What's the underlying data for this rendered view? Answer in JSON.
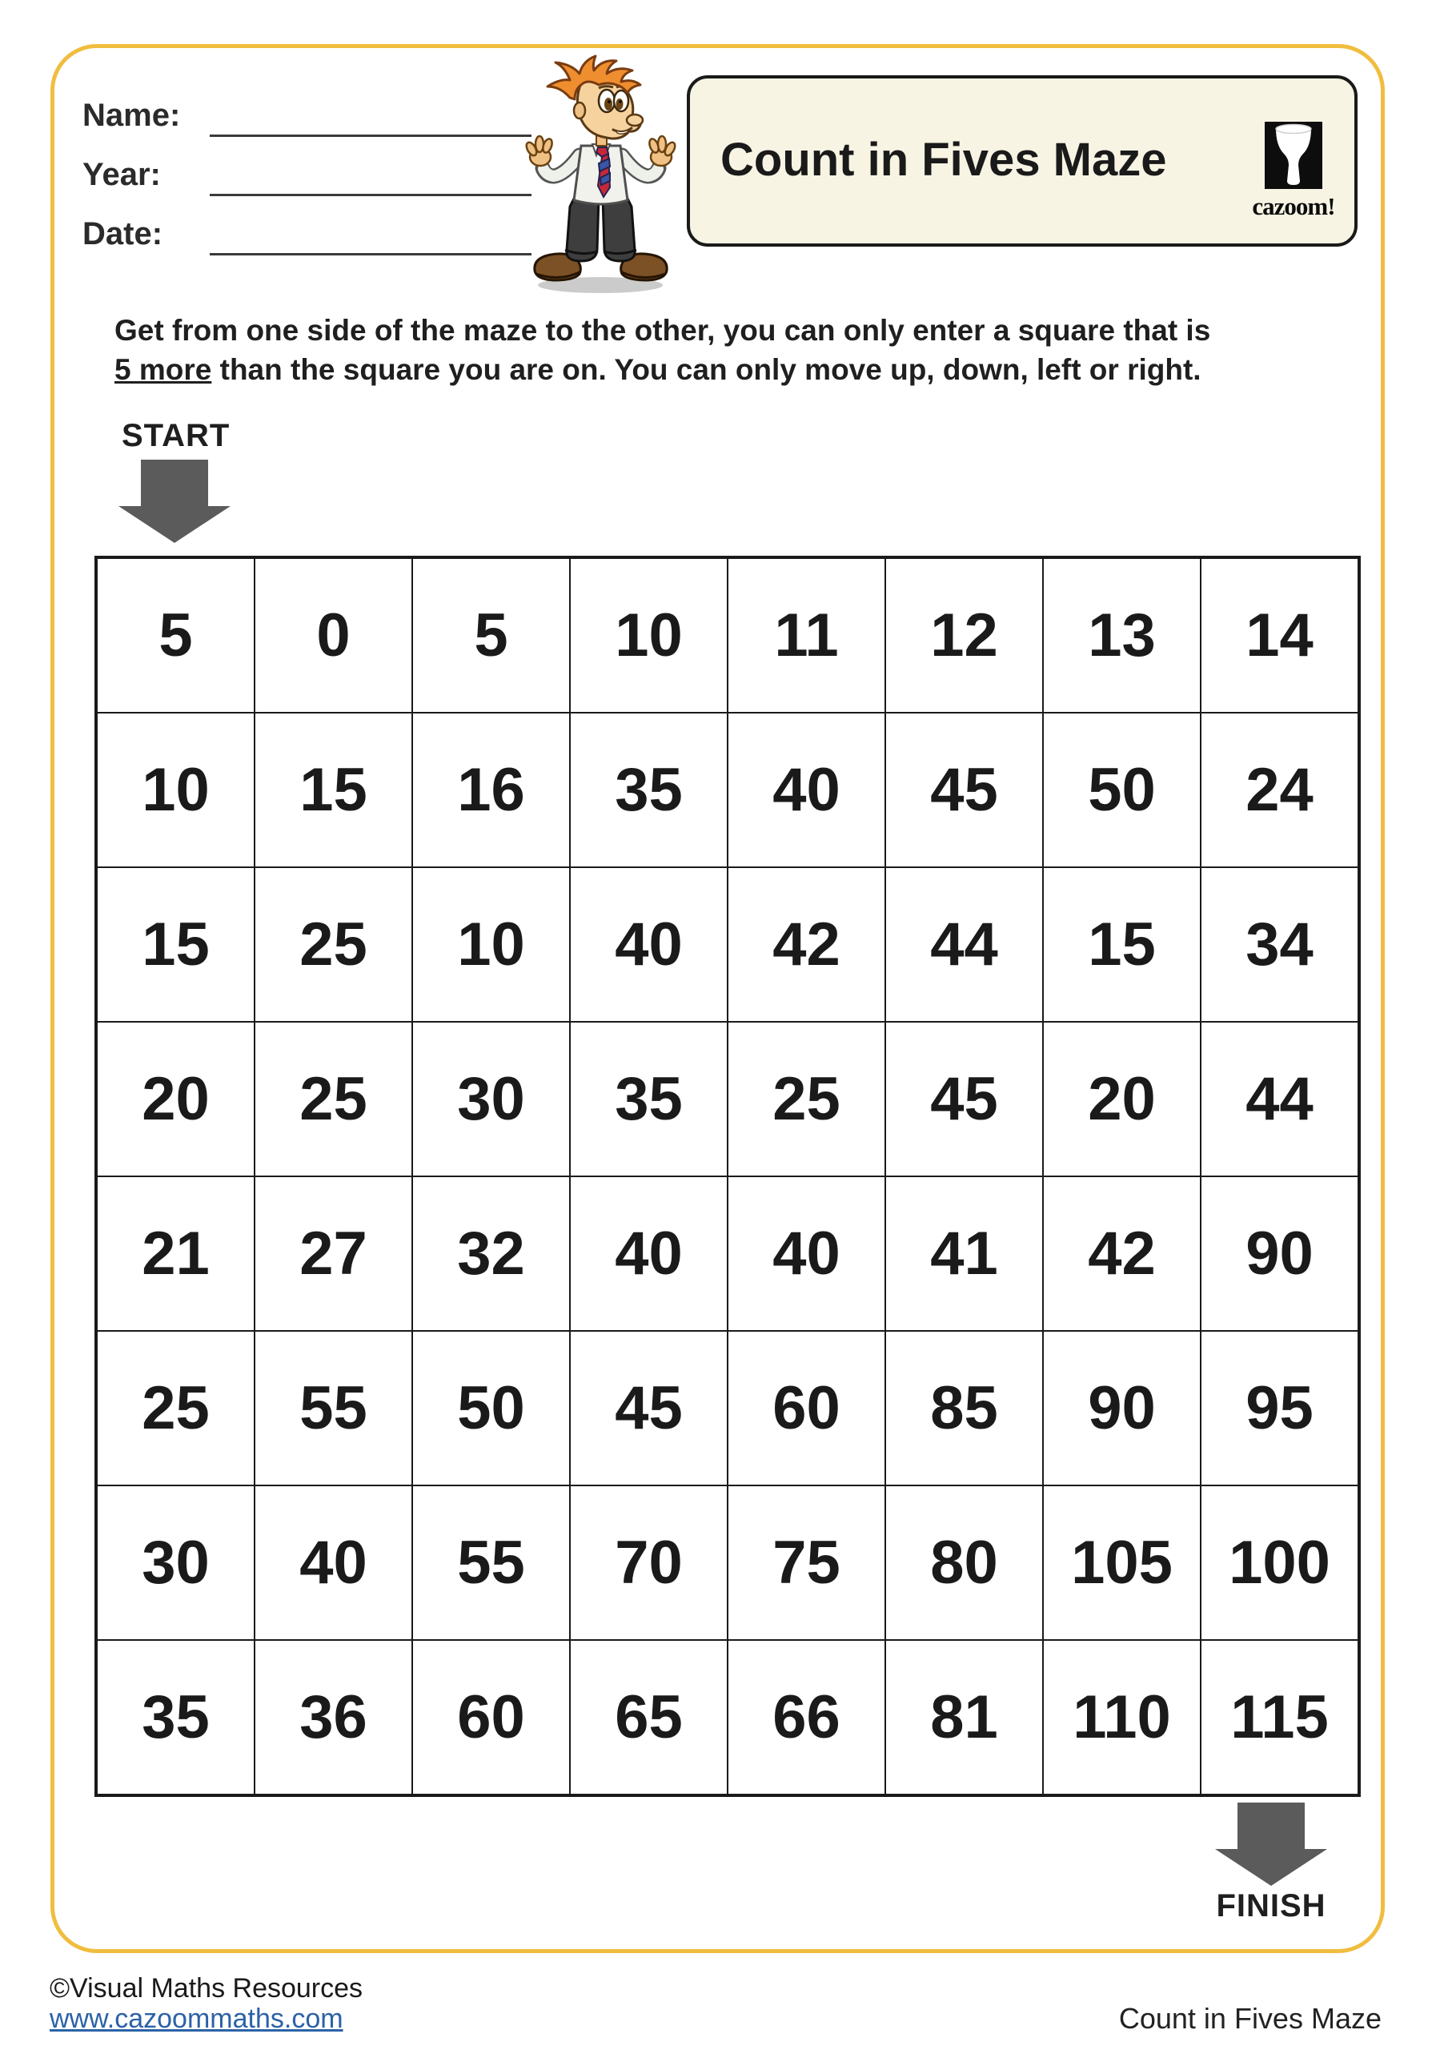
{
  "header": {
    "name_label": "Name:",
    "year_label": "Year:",
    "date_label": "Date:",
    "name_value": "",
    "year_value": "",
    "date_value": ""
  },
  "title_box": {
    "title": "Count in Fives Maze",
    "logo_text": "cazoom!"
  },
  "instructions": {
    "line1": "Get from one side of the maze to the other, you can only enter a square that is",
    "emphasis": "5 more",
    "line2_rest": " than the square you are on. You can only move up, down, left or right."
  },
  "maze": {
    "start_label": "START",
    "finish_label": "FINISH",
    "rows": 8,
    "cols": 8,
    "grid": [
      [
        5,
        0,
        5,
        10,
        11,
        12,
        13,
        14
      ],
      [
        10,
        15,
        16,
        35,
        40,
        45,
        50,
        24
      ],
      [
        15,
        25,
        10,
        40,
        42,
        44,
        15,
        34
      ],
      [
        20,
        25,
        30,
        35,
        25,
        45,
        20,
        44
      ],
      [
        21,
        27,
        32,
        40,
        40,
        41,
        42,
        90
      ],
      [
        25,
        55,
        50,
        45,
        60,
        85,
        90,
        95
      ],
      [
        30,
        40,
        55,
        70,
        75,
        80,
        105,
        100
      ],
      [
        35,
        36,
        60,
        65,
        66,
        81,
        110,
        115
      ]
    ]
  },
  "footer": {
    "copyright": "©Visual Maths Resources",
    "website": "www.cazoommaths.com",
    "worksheet_name": "Count in Fives Maze"
  },
  "icons": {
    "mascot": "cazoom-mascot",
    "logo": "cazoom-goblet-logo",
    "start_arrow": "down-arrow",
    "finish_arrow": "down-arrow"
  },
  "colors": {
    "page_border": "#F0BD3F",
    "title_box_bg": "#F7F4E3",
    "arrow_gray": "#5B5B5B",
    "link_blue": "#2B62A7",
    "text_black": "#1A1A1A"
  }
}
